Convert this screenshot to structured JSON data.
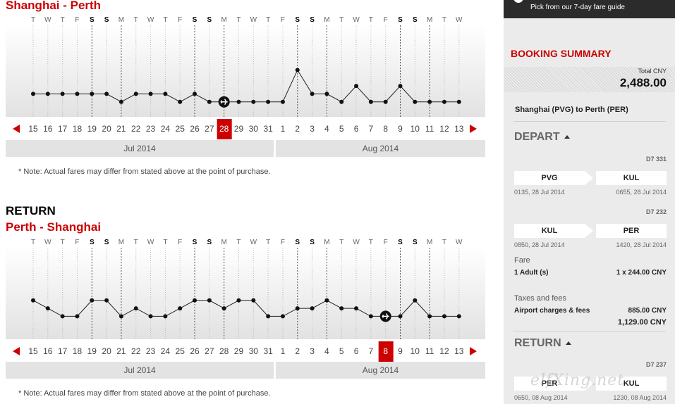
{
  "depart": {
    "route": "Shanghai - Perth",
    "weekdays": [
      "T",
      "W",
      "T",
      "F",
      "S",
      "S",
      "M",
      "T",
      "W",
      "T",
      "F",
      "S",
      "S",
      "M",
      "T",
      "W",
      "T",
      "F",
      "S",
      "S",
      "M",
      "T",
      "W",
      "T",
      "F",
      "S",
      "S",
      "M",
      "T",
      "W"
    ],
    "dates": [
      "15",
      "16",
      "17",
      "18",
      "19",
      "20",
      "21",
      "22",
      "23",
      "24",
      "25",
      "26",
      "27",
      "28",
      "29",
      "30",
      "31",
      "1",
      "2",
      "3",
      "4",
      "5",
      "6",
      "7",
      "8",
      "9",
      "10",
      "11",
      "12",
      "13"
    ],
    "selected_index": 13,
    "level": [
      2,
      2,
      2,
      2,
      2,
      2,
      1,
      2,
      2,
      2,
      1,
      2,
      1,
      1,
      1,
      1,
      1,
      1,
      5,
      2,
      2,
      1,
      3,
      1,
      1,
      3,
      1,
      1,
      1,
      1
    ],
    "months": [
      "Jul 2014",
      "Aug 2014"
    ],
    "note": "* Note: Actual fares may differ from stated above at the point of purchase."
  },
  "return": {
    "section_label": "RETURN",
    "route": "Perth - Shanghai",
    "weekdays": [
      "T",
      "W",
      "T",
      "F",
      "S",
      "S",
      "M",
      "T",
      "W",
      "T",
      "F",
      "S",
      "S",
      "M",
      "T",
      "W",
      "T",
      "F",
      "S",
      "S",
      "M",
      "T",
      "W",
      "T",
      "F",
      "S",
      "S",
      "M",
      "T",
      "W"
    ],
    "dates": [
      "15",
      "16",
      "17",
      "18",
      "19",
      "20",
      "21",
      "22",
      "23",
      "24",
      "25",
      "26",
      "27",
      "28",
      "29",
      "30",
      "31",
      "1",
      "2",
      "3",
      "4",
      "5",
      "6",
      "7",
      "8",
      "9",
      "10",
      "11",
      "12",
      "13"
    ],
    "selected_index": 24,
    "level": [
      4,
      3,
      2,
      2,
      4,
      4,
      2,
      3,
      2,
      2,
      3,
      4,
      4,
      3,
      4,
      4,
      2,
      2,
      3,
      3,
      4,
      3,
      3,
      2,
      2,
      2,
      4,
      2,
      2,
      2
    ],
    "months": [
      "Jul 2014",
      "Aug 2014"
    ],
    "note": "* Note: Actual fares may differ from stated above at the point of purchase."
  },
  "top_bar": {
    "text": "Pick from our 7-day fare guide"
  },
  "summary": {
    "title": "BOOKING SUMMARY",
    "total_label": "Total CNY",
    "total": "2,488.00",
    "route": "Shanghai (PVG) to Perth (PER)",
    "depart_label": "DEPART",
    "return_label": "RETURN",
    "depart_flights": [
      {
        "flight": "D7 331",
        "from": "PVG",
        "to": "KUL",
        "dep": "0135, 28 Jul 2014",
        "arr": "0655, 28 Jul 2014"
      },
      {
        "flight": "D7 232",
        "from": "KUL",
        "to": "PER",
        "dep": "0850, 28 Jul 2014",
        "arr": "1420, 28 Jul 2014"
      }
    ],
    "fare_label": "Fare",
    "fare_pax": "1 Adult (s)",
    "fare_value": "1 x 244.00 CNY",
    "taxes_label": "Taxes and fees",
    "airport_label": "Airport charges & fees",
    "airport_value": "885.00 CNY",
    "subtotal": "1,129.00 CNY",
    "return_flights": [
      {
        "flight": "D7 237",
        "from": "PER",
        "to": "KUL",
        "dep": "0650, 08 Aug 2014",
        "arr": "1230, 08 Aug 2014"
      }
    ]
  },
  "watermark": "elfXing.net",
  "colors": {
    "accent": "#cc0000",
    "selected": "#cc0000",
    "month_bar": "#e3e3e3"
  }
}
